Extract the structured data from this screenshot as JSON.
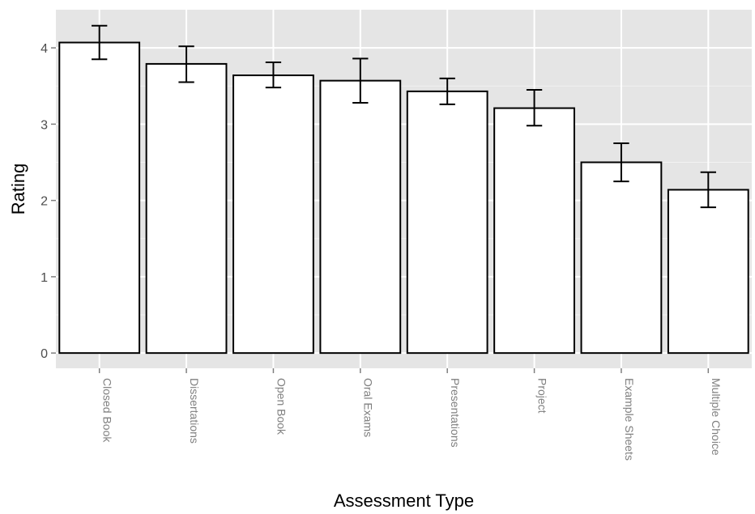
{
  "chart_data": {
    "type": "bar",
    "title": "",
    "xlabel": "Assessment Type",
    "ylabel": "Rating",
    "categories": [
      "Closed Book",
      "Dissertations",
      "Open Book",
      "Oral Exams",
      "Presentations",
      "Project",
      "Example Sheets",
      "Multiple Choice"
    ],
    "values": [
      4.07,
      3.79,
      3.64,
      3.57,
      3.43,
      3.21,
      2.5,
      2.14
    ],
    "error_low": [
      3.85,
      3.55,
      3.48,
      3.28,
      3.26,
      2.98,
      2.25,
      1.91
    ],
    "error_high": [
      4.29,
      4.02,
      3.81,
      3.86,
      3.6,
      3.45,
      2.75,
      2.37
    ],
    "yticks": [
      0,
      1,
      2,
      3,
      4
    ],
    "ylim": [
      -0.2,
      4.5
    ],
    "grid": true,
    "colors": {
      "panel_background": "#e5e5e5",
      "grid_major": "#ffffff",
      "grid_minor": "#f2f2f2",
      "bar_fill": "#ffffff",
      "bar_outline": "#000000"
    }
  }
}
